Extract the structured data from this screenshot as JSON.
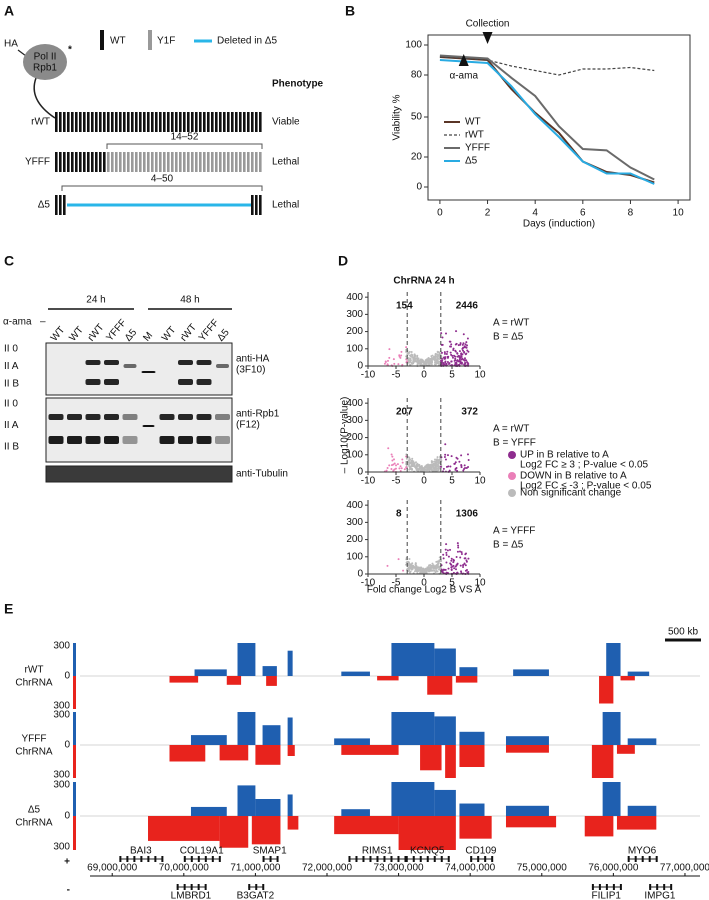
{
  "panel_labels": [
    "A",
    "B",
    "C",
    "D",
    "E"
  ],
  "panel_a": {
    "protein": {
      "tag": "HA",
      "line1": "Pol II",
      "line2": "Rpb1",
      "mark": "*"
    },
    "legend": {
      "wt": "WT",
      "y1f": "Y1F",
      "deleted": "Deleted in Δ5"
    },
    "phenotype_header": "Phenotype",
    "rows": [
      {
        "label": "rWT",
        "phenotype": "Viable"
      },
      {
        "label": "YFFF",
        "range": "14–52",
        "phenotype": "Lethal"
      },
      {
        "label": "Δ5",
        "range": "4–50",
        "phenotype": "Lethal"
      }
    ]
  },
  "panel_c": {
    "treatment": "α-ama",
    "untreated": "–",
    "timepoints": [
      "24 h",
      "48 h"
    ],
    "lanes": [
      "WT",
      "WT",
      "rWT",
      "YFFF",
      "Δ5",
      "M",
      "WT",
      "rWT",
      "YFFF",
      "Δ5"
    ],
    "blots": [
      {
        "bands": [
          "II 0",
          "II A",
          "II B"
        ],
        "antibody": [
          "anti-HA",
          "(3F10)"
        ]
      },
      {
        "bands": [
          "II 0",
          "II A",
          "II B"
        ],
        "antibody": [
          "anti-Rpb1",
          "(F12)"
        ]
      },
      {
        "antibody": [
          "anti-Tubulin"
        ]
      }
    ]
  },
  "chart_data": [
    {
      "type": "line",
      "ylabel": "Viability %",
      "xlabel": "Days (induction)",
      "x": [
        0,
        1,
        2,
        3,
        4,
        5,
        6,
        7,
        8,
        9
      ],
      "xlim": [
        -0.5,
        10.5
      ],
      "xticks": [
        0,
        2,
        4,
        6,
        8,
        10
      ],
      "ylim": [
        -5,
        105
      ],
      "yticks": [
        0,
        20,
        50,
        80,
        100
      ],
      "annotations": [
        {
          "text": "Collection",
          "x": 2
        },
        {
          "text": "α-ama",
          "x": 1
        }
      ],
      "series": [
        {
          "name": "WT",
          "color": "#5a3526",
          "values": [
            92,
            91,
            90,
            70,
            53,
            38,
            17,
            10,
            8,
            3
          ]
        },
        {
          "name": "rWT",
          "color": "#444444",
          "style": "dashed",
          "values": [
            92,
            91,
            90,
            86,
            83,
            80,
            84,
            84,
            85,
            83
          ]
        },
        {
          "name": "YFFF",
          "color": "#6a6a6a",
          "values": [
            93,
            92,
            91,
            78,
            65,
            43,
            26,
            25,
            13,
            5
          ]
        },
        {
          "name": "Δ5",
          "color": "#29abe2",
          "values": [
            90,
            89,
            88,
            72,
            52,
            35,
            17,
            9,
            9,
            2
          ]
        }
      ]
    },
    {
      "type": "volcano",
      "title": "ChrRNA 24 h",
      "ylabel": "– Log10(P-value)",
      "xlabel": "Fold change Log2 B VS A",
      "xlim": [
        -10,
        10
      ],
      "xticks": [
        -10,
        -5,
        0,
        5,
        10
      ],
      "ylim": [
        0,
        430
      ],
      "yticks": [
        0,
        100,
        200,
        300,
        400
      ],
      "thresholds": [
        -3,
        3
      ],
      "comparisons": [
        {
          "a": "A = rWT",
          "b": "B = Δ5",
          "down": 154,
          "up": 2446
        },
        {
          "a": "A = rWT",
          "b": "B = YFFF",
          "down": 207,
          "up": 372
        },
        {
          "a": "A = YFFF",
          "b": "B = Δ5",
          "down": 8,
          "up": 1306
        }
      ],
      "legend": [
        {
          "label": "UP in B relative to A",
          "detail": "Log2 FC ≥ 3 ; P-value < 0.05",
          "color": "#8e2c8e"
        },
        {
          "label": "DOWN in B relative to A",
          "detail": "Log2 FC ≤ -3 ; P-value < 0.05",
          "color": "#ea7fb8"
        },
        {
          "label": "Non significant change",
          "color": "#bbbbbb"
        }
      ]
    },
    {
      "type": "track",
      "scale_bar": "500 kb",
      "plus_color": "#1f5fb0",
      "minus_color": "#e8231d",
      "strands": [
        "+",
        "-"
      ],
      "xlim": [
        68550000,
        77210000
      ],
      "xticks": [
        {
          "value": 69000000,
          "label": "69,000,000"
        },
        {
          "value": 70000000,
          "label": "70,000,000"
        },
        {
          "value": 71000000,
          "label": "71,000,000"
        },
        {
          "value": 72000000,
          "label": "72,000,000"
        },
        {
          "value": 73000000,
          "label": "73,000,000"
        },
        {
          "value": 74000000,
          "label": "74,000,000"
        },
        {
          "value": 75000000,
          "label": "75,000,000"
        },
        {
          "value": 76000000,
          "label": "76,000,000"
        },
        {
          "value": 77000000,
          "label": "77,000,000"
        }
      ],
      "yticks": [
        0,
        300
      ],
      "tracks": [
        {
          "label": [
            "rWT",
            "ChrRNA"
          ],
          "plus": [
            {
              "start": 70150000,
              "end": 70600000,
              "value": 60
            },
            {
              "start": 70750000,
              "end": 71000000,
              "value": 300
            },
            {
              "start": 71100000,
              "end": 71300000,
              "value": 90
            },
            {
              "start": 71450000,
              "end": 71520000,
              "value": 230
            },
            {
              "start": 72200000,
              "end": 72600000,
              "value": 40
            },
            {
              "start": 72900000,
              "end": 73500000,
              "value": 300
            },
            {
              "start": 73500000,
              "end": 73800000,
              "value": 250
            },
            {
              "start": 73850000,
              "end": 74100000,
              "value": 80
            },
            {
              "start": 74600000,
              "end": 75100000,
              "value": 60
            },
            {
              "start": 75900000,
              "end": 76100000,
              "value": 300
            },
            {
              "start": 76200000,
              "end": 76500000,
              "value": 40
            }
          ],
          "minus": [
            {
              "start": 69800000,
              "end": 70200000,
              "value": 60
            },
            {
              "start": 70600000,
              "end": 70800000,
              "value": 80
            },
            {
              "start": 71150000,
              "end": 71300000,
              "value": 90
            },
            {
              "start": 72700000,
              "end": 73000000,
              "value": 40
            },
            {
              "start": 73400000,
              "end": 73750000,
              "value": 170
            },
            {
              "start": 73800000,
              "end": 74100000,
              "value": 60
            },
            {
              "start": 75800000,
              "end": 76000000,
              "value": 250
            },
            {
              "start": 76100000,
              "end": 76300000,
              "value": 40
            }
          ]
        },
        {
          "label": [
            "YFFF",
            "ChrRNA"
          ],
          "plus": [
            {
              "start": 70100000,
              "end": 70600000,
              "value": 90
            },
            {
              "start": 70750000,
              "end": 71000000,
              "value": 300
            },
            {
              "start": 71100000,
              "end": 71350000,
              "value": 180
            },
            {
              "start": 71450000,
              "end": 71520000,
              "value": 250
            },
            {
              "start": 72100000,
              "end": 72600000,
              "value": 60
            },
            {
              "start": 72900000,
              "end": 73500000,
              "value": 300
            },
            {
              "start": 73500000,
              "end": 73800000,
              "value": 260
            },
            {
              "start": 73850000,
              "end": 74200000,
              "value": 120
            },
            {
              "start": 74500000,
              "end": 75100000,
              "value": 80
            },
            {
              "start": 75850000,
              "end": 76100000,
              "value": 300
            },
            {
              "start": 76200000,
              "end": 76600000,
              "value": 60
            }
          ],
          "minus": [
            {
              "start": 69800000,
              "end": 70300000,
              "value": 150
            },
            {
              "start": 70500000,
              "end": 70900000,
              "value": 140
            },
            {
              "start": 71000000,
              "end": 71350000,
              "value": 180
            },
            {
              "start": 71450000,
              "end": 71550000,
              "value": 100
            },
            {
              "start": 72200000,
              "end": 73000000,
              "value": 90
            },
            {
              "start": 73300000,
              "end": 73600000,
              "value": 230
            },
            {
              "start": 73650000,
              "end": 73800000,
              "value": 300
            },
            {
              "start": 73850000,
              "end": 74200000,
              "value": 200
            },
            {
              "start": 74500000,
              "end": 75100000,
              "value": 70
            },
            {
              "start": 75700000,
              "end": 76000000,
              "value": 300
            },
            {
              "start": 76050000,
              "end": 76300000,
              "value": 80
            }
          ]
        },
        {
          "label": [
            "Δ5",
            "ChrRNA"
          ],
          "plus": [
            {
              "start": 70100000,
              "end": 70600000,
              "value": 80
            },
            {
              "start": 70750000,
              "end": 71000000,
              "value": 270
            },
            {
              "start": 71000000,
              "end": 71350000,
              "value": 150
            },
            {
              "start": 71450000,
              "end": 71520000,
              "value": 190
            },
            {
              "start": 72200000,
              "end": 72600000,
              "value": 60
            },
            {
              "start": 72900000,
              "end": 73500000,
              "value": 300
            },
            {
              "start": 73500000,
              "end": 73800000,
              "value": 230
            },
            {
              "start": 73850000,
              "end": 74200000,
              "value": 110
            },
            {
              "start": 74500000,
              "end": 75100000,
              "value": 90
            },
            {
              "start": 75850000,
              "end": 76100000,
              "value": 300
            },
            {
              "start": 76200000,
              "end": 76600000,
              "value": 90
            }
          ],
          "minus": [
            {
              "start": 69500000,
              "end": 70500000,
              "value": 220
            },
            {
              "start": 70500000,
              "end": 70900000,
              "value": 280
            },
            {
              "start": 70950000,
              "end": 71350000,
              "value": 250
            },
            {
              "start": 71450000,
              "end": 71600000,
              "value": 120
            },
            {
              "start": 72100000,
              "end": 73000000,
              "value": 160
            },
            {
              "start": 73000000,
              "end": 73800000,
              "value": 300
            },
            {
              "start": 73850000,
              "end": 74300000,
              "value": 200
            },
            {
              "start": 74500000,
              "end": 75200000,
              "value": 100
            },
            {
              "start": 75600000,
              "end": 76000000,
              "value": 180
            },
            {
              "start": 76050000,
              "end": 76600000,
              "value": 120
            }
          ]
        }
      ],
      "genes_plus": [
        {
          "name": "BAI3",
          "start": 69100000,
          "end": 69700000
        },
        {
          "name": "COL19A1",
          "start": 70000000,
          "end": 70500000
        },
        {
          "name": "SMAP1",
          "start": 71100000,
          "end": 71300000
        },
        {
          "name": "RIMS1",
          "start": 72300000,
          "end": 73100000
        },
        {
          "name": "KCNQ5",
          "start": 73100000,
          "end": 73700000
        },
        {
          "name": "CD109",
          "start": 74000000,
          "end": 74300000
        },
        {
          "name": "MYO6",
          "start": 76200000,
          "end": 76600000
        }
      ],
      "genes_minus": [
        {
          "name": "LMBRD1",
          "start": 69900000,
          "end": 70300000
        },
        {
          "name": "B3GAT2",
          "start": 70900000,
          "end": 71100000
        },
        {
          "name": "FILIP1",
          "start": 75700000,
          "end": 76100000
        },
        {
          "name": "IMPG1",
          "start": 76500000,
          "end": 76800000
        }
      ]
    }
  ]
}
